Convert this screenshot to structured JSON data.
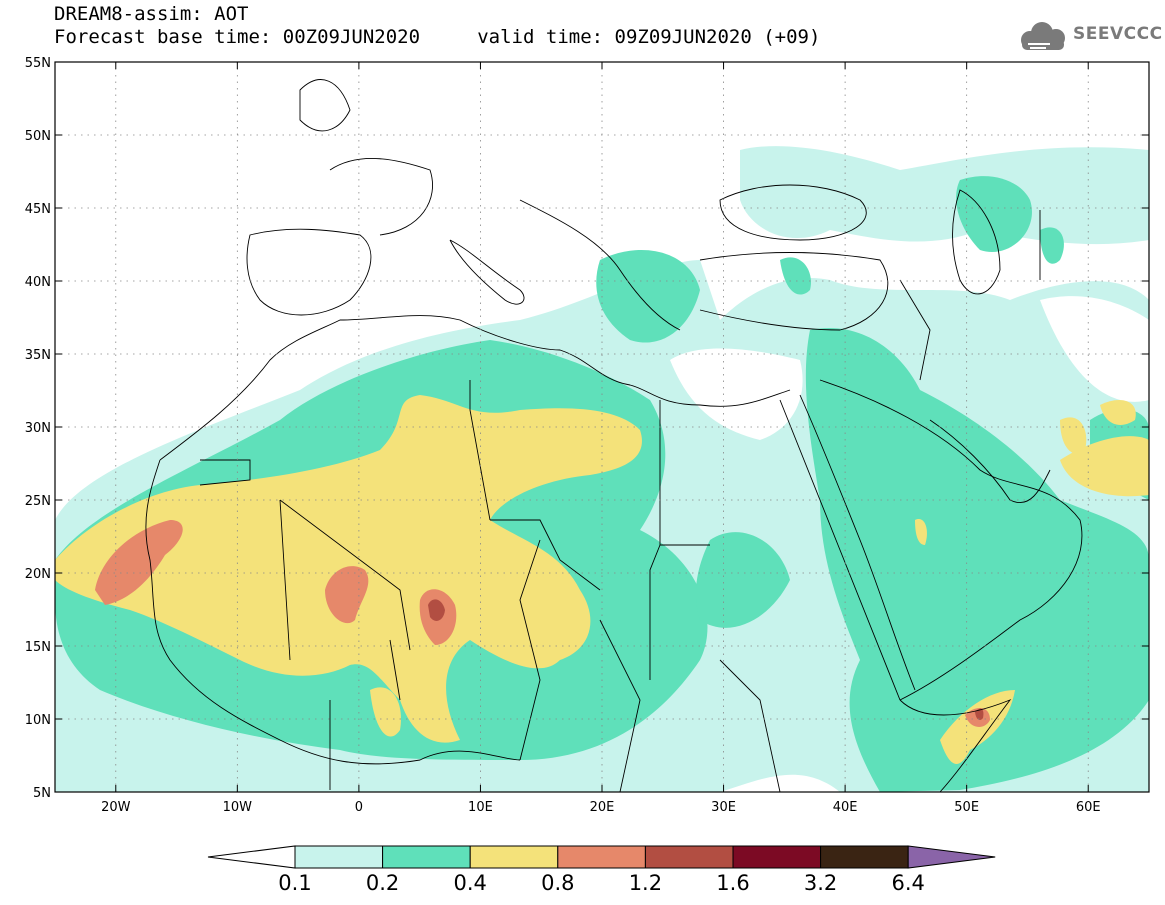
{
  "header": {
    "title_line1": "DREAM8-assim: AOT",
    "title_line2": "Forecast base time: 00Z09JUN2020     valid time: 09Z09JUN2020 (+09)",
    "logo_text": "SEEVCCC",
    "logo_icon": "cloud-icon"
  },
  "map": {
    "lat_labels": [
      "55N",
      "50N",
      "45N",
      "40N",
      "35N",
      "30N",
      "25N",
      "20N",
      "15N",
      "10N",
      "5N"
    ],
    "lon_labels": [
      "20W",
      "10W",
      "0",
      "10E",
      "20E",
      "30E",
      "40E",
      "50E",
      "60E"
    ],
    "lat_range": [
      5,
      55
    ],
    "lon_range": [
      -25,
      65
    ],
    "grid": "dotted"
  },
  "colorbar": {
    "labels": [
      "0.1",
      "0.2",
      "0.4",
      "0.8",
      "1.2",
      "1.6",
      "3.2",
      "6.4"
    ],
    "colors": [
      "#c8f3ec",
      "#5fe0ba",
      "#f4e27a",
      "#e6886a",
      "#b24e42",
      "#7c0a24",
      "#3a2413",
      "#8a64a8"
    ]
  }
}
